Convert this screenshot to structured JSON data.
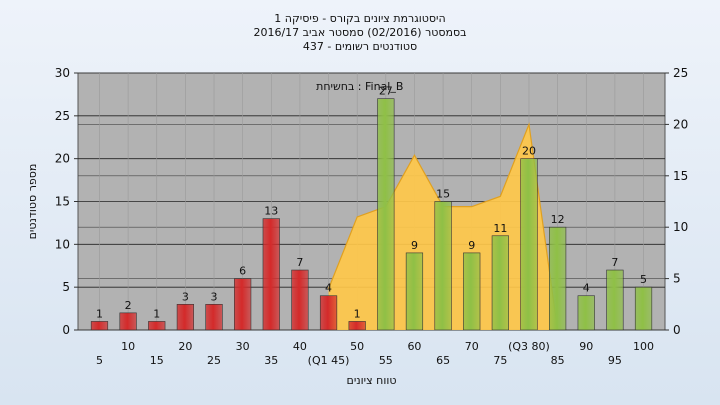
{
  "chart_data": {
    "type": "bar",
    "title_lines": [
      "היסטוגרמת ציונים בקורס - פיסיקה 1",
      "בסמסטר  (02/2016)  סמסטר אביב 2016/17",
      "סטודנטים רשומים - 437"
    ],
    "annotation": "בחשיחת : Final_B",
    "xlabel": "טווח ציונים",
    "ylabel": "מספר סטודנטים",
    "ylim": [
      0,
      30
    ],
    "y_ticks": [
      0,
      5,
      10,
      15,
      20,
      25,
      30
    ],
    "y2lim": [
      0,
      25
    ],
    "y2_ticks": [
      0,
      5,
      10,
      15,
      20,
      25
    ],
    "categories": [
      "5",
      "10",
      "15",
      "20",
      "25",
      "30",
      "35",
      "40",
      "(Q1 45)",
      "50",
      "55",
      "60",
      "65",
      "70",
      "75",
      "(Q3 80)",
      "85",
      "90",
      "95",
      "100"
    ],
    "series": [
      {
        "color": "#d42a2a",
        "values": [
          1,
          2,
          1,
          3,
          3,
          6,
          13,
          7,
          4,
          1,
          null,
          null,
          null,
          null,
          null,
          null,
          null,
          null,
          null,
          null
        ]
      },
      {
        "color": "#8fc046",
        "values": [
          null,
          null,
          null,
          null,
          null,
          null,
          null,
          null,
          null,
          null,
          27,
          9,
          15,
          9,
          11,
          20,
          12,
          4,
          7,
          5
        ]
      }
    ],
    "area": {
      "color": "#ffc84a",
      "axis": "right",
      "values": [
        null,
        null,
        null,
        null,
        null,
        null,
        null,
        null,
        4,
        11,
        12,
        17,
        12,
        12,
        13,
        20,
        0,
        null,
        null,
        null
      ]
    },
    "grid": true,
    "plot_color": "#b2b2b2"
  }
}
